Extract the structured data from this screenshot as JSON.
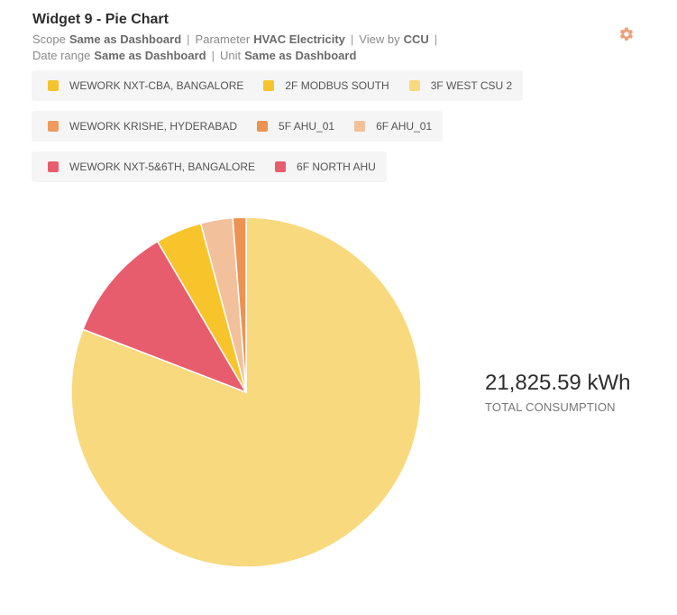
{
  "widget": {
    "title": "Widget 9 - Pie Chart",
    "scope_label": "Scope",
    "scope_value": "Same as Dashboard",
    "parameter_label": "Parameter",
    "parameter_value": "HVAC Electricity",
    "viewby_label": "View by",
    "viewby_value": "CCU",
    "sep": "|",
    "daterange_label": "Date range",
    "daterange_value": "Same as Dashboard",
    "unit_label": "Unit",
    "unit_value": "Same as Dashboard",
    "settings_icon": "gear-icon",
    "settings_color": "#f0a07a"
  },
  "legend_groups": [
    {
      "items": [
        {
          "label": "WEWORK NXT-CBA, BANGALORE",
          "color": "#f4c430"
        },
        {
          "label": "2F MODBUS SOUTH",
          "color": "#f7c52b"
        },
        {
          "label": "3F WEST CSU 2",
          "color": "#f8d97d"
        }
      ]
    },
    {
      "items": [
        {
          "label": "WEWORK KRISHE, HYDERABAD",
          "color": "#ef9a5e"
        },
        {
          "label": "5F AHU_01",
          "color": "#ec9352"
        },
        {
          "label": "6F AHU_01",
          "color": "#f3c09c"
        }
      ]
    },
    {
      "items": [
        {
          "label": "WEWORK NXT-5&6TH, BANGALORE",
          "color": "#e85d6d"
        },
        {
          "label": "6F NORTH AHU",
          "color": "#e85d6d"
        }
      ]
    }
  ],
  "summary": {
    "total_value": "21,825.59 kWh",
    "total_label": "TOTAL CONSUMPTION"
  },
  "chart_data": {
    "type": "pie",
    "series": [
      {
        "name": "3F WEST CSU 2",
        "share": 0.794,
        "color": "#f8d97d"
      },
      {
        "name": "6F NORTH AHU",
        "share": 0.105,
        "color": "#e85d6d"
      },
      {
        "name": "2F MODBUS SOUTH",
        "share": 0.042,
        "color": "#f7c52b"
      },
      {
        "name": "6F AHU_01",
        "share": 0.029,
        "color": "#f3c09c"
      },
      {
        "name": "5F AHU_01",
        "share": 0.012,
        "color": "#ec9352"
      }
    ]
  }
}
